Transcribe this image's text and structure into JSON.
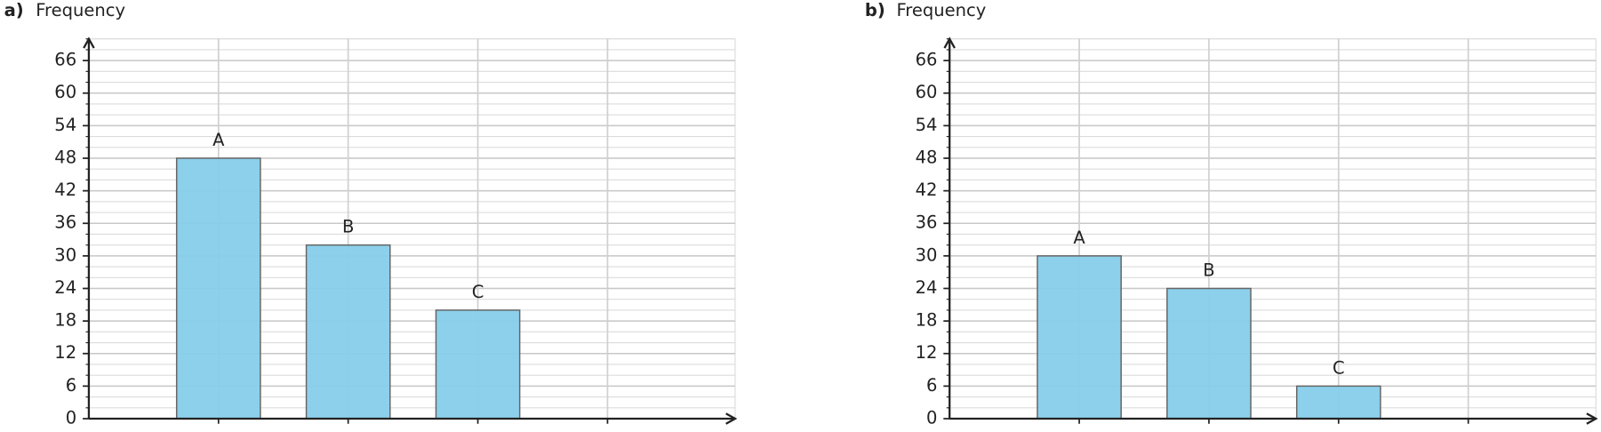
{
  "chart_data": [
    {
      "type": "bar",
      "label": "a)",
      "title": "Frequency",
      "categories": [
        "A",
        "B",
        "C",
        null
      ],
      "values": [
        48,
        32,
        20,
        null
      ],
      "color": "#87ceeb",
      "ylim": [
        0,
        70
      ],
      "yticks": [
        0,
        6,
        12,
        18,
        24,
        30,
        36,
        42,
        48,
        54,
        60,
        66
      ],
      "grid": true,
      "minor_grid_step": 2
    },
    {
      "type": "bar",
      "label": "b)",
      "title": "Frequency",
      "categories": [
        "A",
        "B",
        "C",
        null
      ],
      "values": [
        30,
        24,
        6,
        null
      ],
      "color": "#87ceeb",
      "ylim": [
        0,
        70
      ],
      "yticks": [
        0,
        6,
        12,
        18,
        24,
        30,
        36,
        42,
        48,
        54,
        60,
        66
      ],
      "grid": true,
      "minor_grid_step": 2
    }
  ]
}
